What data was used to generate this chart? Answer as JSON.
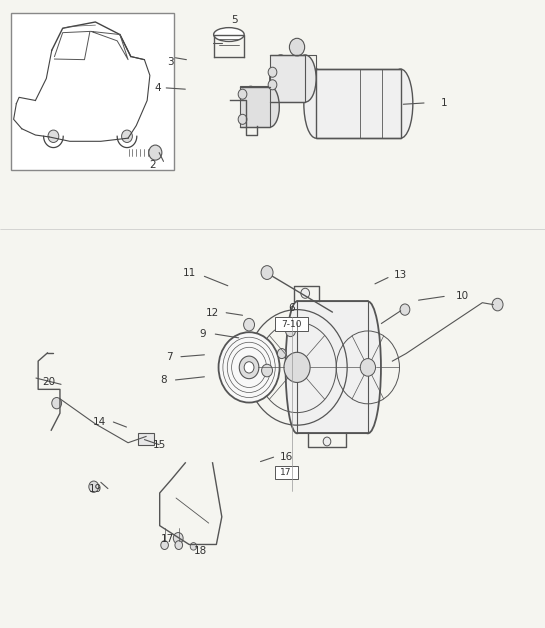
{
  "bg_color": "#f5f5f0",
  "border_color": "#cccccc",
  "line_color": "#555555",
  "label_color": "#333333"
}
